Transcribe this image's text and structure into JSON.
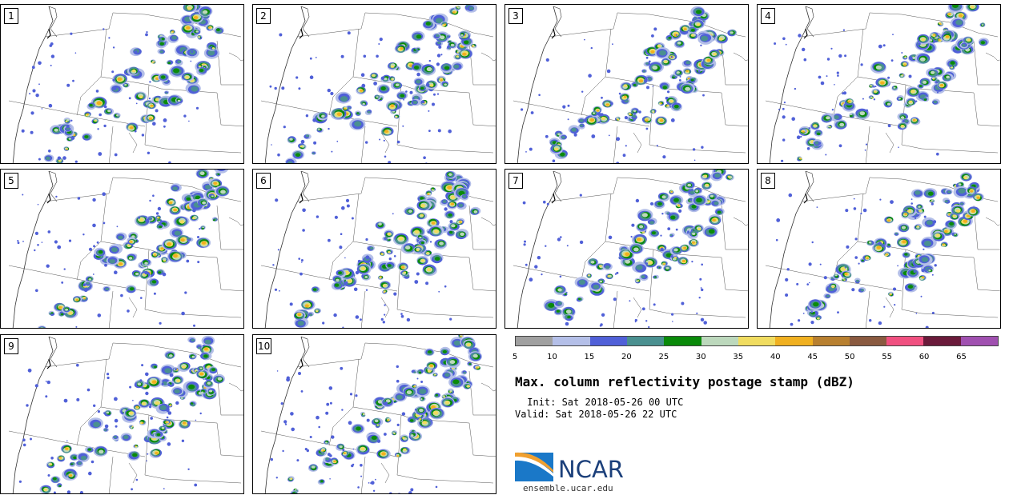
{
  "figure": {
    "title": "Max. column reflectivity postage stamp (dBZ)",
    "init": " Init: Sat 2018-05-26 00 UTC",
    "valid": "Valid: Sat 2018-05-26 22 UTC"
  },
  "panels": [
    {
      "label": "1"
    },
    {
      "label": "2"
    },
    {
      "label": "3"
    },
    {
      "label": "4"
    },
    {
      "label": "5"
    },
    {
      "label": "6"
    },
    {
      "label": "7"
    },
    {
      "label": "8"
    },
    {
      "label": "9"
    },
    {
      "label": "10"
    }
  ],
  "colorbar": {
    "unit": "dBZ",
    "tick_labels": [
      "5",
      "10",
      "15",
      "20",
      "25",
      "30",
      "35",
      "40",
      "45",
      "50",
      "55",
      "60",
      "65"
    ],
    "colors": [
      "#a0a0a0",
      "#b4bfe8",
      "#5060d8",
      "#4a9090",
      "#0a8a0a",
      "#bcd8bc",
      "#f0dc60",
      "#f0b020",
      "#b88030",
      "#8a5a40",
      "#f05080",
      "#6a1a3a",
      "#a050b0"
    ]
  },
  "logo": {
    "text": "NCAR",
    "url": "ensemble.ucar.edu",
    "colors": {
      "text": "#1b3f7a",
      "swoosh_blue": "#1a78c8",
      "swoosh_orange": "#f0a030"
    }
  }
}
